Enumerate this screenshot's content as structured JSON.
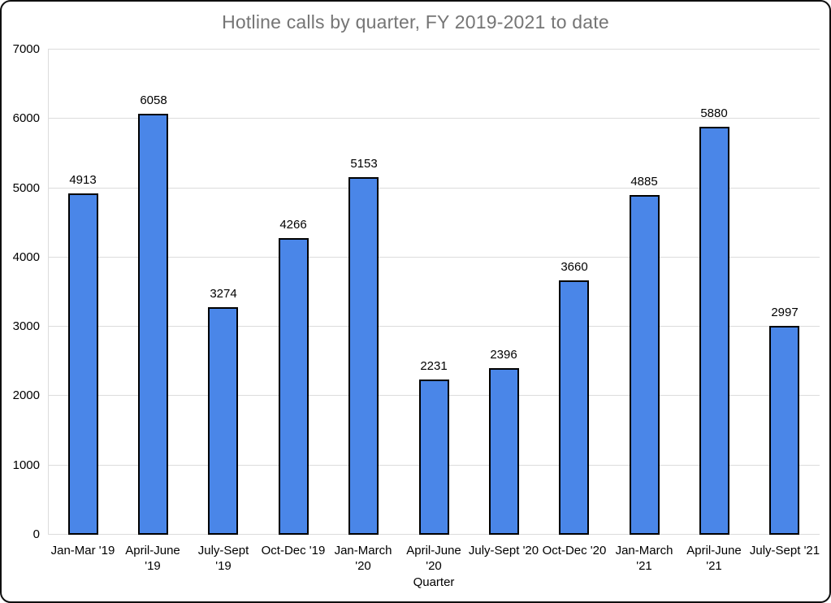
{
  "window": {
    "background": "#ffffff",
    "border_color": "#0f0f0f"
  },
  "chart_data": {
    "type": "bar",
    "title": "Hotline calls by quarter, FY 2019-2021 to date",
    "xlabel": "Quarter",
    "ylabel": "",
    "categories": [
      "Jan-Mar '19",
      "April-June '19",
      "July-Sept '19",
      "Oct-Dec '19",
      "Jan-March '20",
      "April-June '20",
      "July-Sept '20",
      "Oct-Dec '20",
      "Jan-March '21",
      "April-June '21",
      "July-Sept '21"
    ],
    "category_lines": [
      [
        "Jan-Mar '19"
      ],
      [
        "April-June",
        "'19"
      ],
      [
        "July-Sept",
        "'19"
      ],
      [
        "Oct-Dec '19"
      ],
      [
        "Jan-March",
        "'20"
      ],
      [
        "April-June",
        "'20"
      ],
      [
        "July-Sept '20"
      ],
      [
        "Oct-Dec '20"
      ],
      [
        "Jan-March",
        "'21"
      ],
      [
        "April-June",
        "'21"
      ],
      [
        "July-Sept '21"
      ]
    ],
    "values": [
      4913,
      6058,
      3274,
      4266,
      5153,
      2231,
      2396,
      3660,
      4885,
      5880,
      2997
    ],
    "value_labels_shown": true,
    "ylim": [
      0,
      7000
    ],
    "yticks": [
      0,
      1000,
      2000,
      3000,
      4000,
      5000,
      6000,
      7000
    ],
    "grid": true,
    "legend": "none",
    "bar_color": "#4a86e8",
    "bar_border_color": "#000000",
    "title_color": "#757575",
    "axis_text_color": "#000000",
    "gridline_color": "#dcdcdc"
  }
}
